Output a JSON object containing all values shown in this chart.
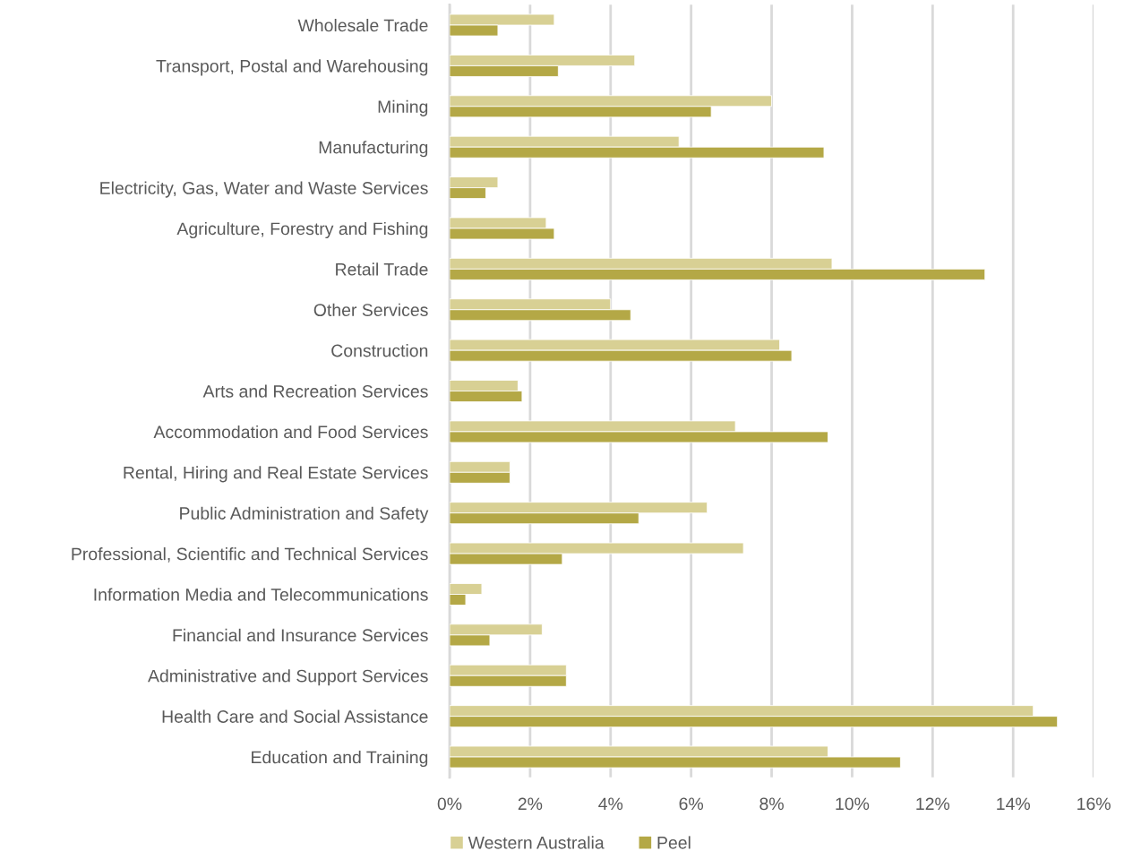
{
  "chart_data": {
    "type": "bar",
    "orientation": "horizontal",
    "categories": [
      "Wholesale Trade",
      "Transport, Postal and Warehousing",
      "Mining",
      "Manufacturing",
      "Electricity, Gas, Water and Waste Services",
      "Agriculture, Forestry and Fishing",
      "Retail Trade",
      "Other Services",
      "Construction",
      "Arts and Recreation Services",
      "Accommodation and Food Services",
      "Rental, Hiring and Real Estate Services",
      "Public Administration and Safety",
      "Professional, Scientific and Technical Services",
      "Information Media and Telecommunications",
      "Financial and Insurance Services",
      "Administrative and Support Services",
      "Health Care and Social Assistance",
      "Education and Training"
    ],
    "series": [
      {
        "name": "Western Australia",
        "color": "#d8d094",
        "values": [
          2.6,
          4.6,
          8.0,
          5.7,
          1.2,
          2.4,
          9.5,
          4.0,
          8.2,
          1.7,
          7.1,
          1.5,
          6.4,
          7.3,
          0.8,
          2.3,
          2.9,
          14.5,
          9.4
        ]
      },
      {
        "name": "Peel",
        "color": "#b4a846",
        "values": [
          1.2,
          2.7,
          6.5,
          9.3,
          0.9,
          2.6,
          13.3,
          4.5,
          8.5,
          1.8,
          9.4,
          1.5,
          4.7,
          2.8,
          0.4,
          1.0,
          2.9,
          15.1,
          11.2
        ]
      }
    ],
    "xlim": [
      0,
      16
    ],
    "xticks": [
      {
        "value": 0,
        "label": "0%"
      },
      {
        "value": 2,
        "label": "2%"
      },
      {
        "value": 4,
        "label": "4%"
      },
      {
        "value": 6,
        "label": "6%"
      },
      {
        "value": 8,
        "label": "8%"
      },
      {
        "value": 10,
        "label": "10%"
      },
      {
        "value": 12,
        "label": "12%"
      },
      {
        "value": 14,
        "label": "14%"
      },
      {
        "value": 16,
        "label": "16%"
      }
    ],
    "grid": "x",
    "legend": "bottom"
  }
}
